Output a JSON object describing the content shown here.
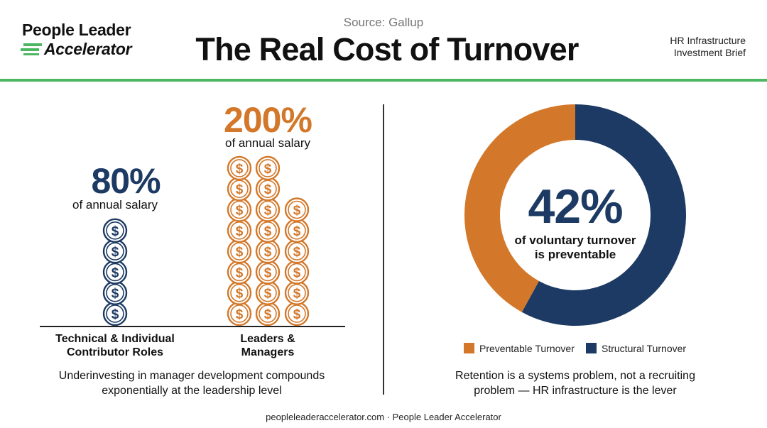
{
  "header": {
    "logo_line1": "People Leader",
    "logo_line2": "Accelerator",
    "source": "Source: Gallup",
    "title": "The Real Cost of Turnover",
    "brief_line1": "HR Infrastructure",
    "brief_line2": "Investment Brief"
  },
  "colors": {
    "navy": "#1c3a63",
    "orange": "#d3782a",
    "green_rule": "#4cb763"
  },
  "chart_data": [
    {
      "type": "bar",
      "categories": [
        "Technical & Individual Contributor Roles",
        "Leaders & Managers"
      ],
      "values": [
        80,
        200
      ],
      "unit": "% of annual salary",
      "data_labels": [
        "80%",
        "200%"
      ],
      "data_sublabels": [
        "of annual salary",
        "of annual salary"
      ],
      "coin_counts": [
        5,
        22
      ],
      "colors": [
        "#1c3a63",
        "#d3782a"
      ],
      "caption": "Underinvesting in manager development compounds exponentially at the leadership level"
    },
    {
      "type": "pie",
      "variant": "donut",
      "slices": [
        {
          "name": "Preventable Turnover",
          "value": 42,
          "color": "#d3782a"
        },
        {
          "name": "Structural Turnover",
          "value": 58,
          "color": "#1c3a63"
        }
      ],
      "center_value": "42%",
      "center_text_line1": "of voluntary turnover",
      "center_text_line2": "is preventable",
      "legend_position": "bottom",
      "caption": "Retention is a systems problem, not a recruiting problem — HR infrastructure is the lever"
    }
  ],
  "labels": {
    "cat1_line1": "Technical & Individual",
    "cat1_line2": "Contributor Roles",
    "cat2_line1": "Leaders &",
    "cat2_line2": "Managers",
    "caption_left_line1": "Underinvesting in manager development compounds",
    "caption_left_line2": "exponentially at the leadership level",
    "caption_right_line1": "Retention is a systems problem, not a recruiting",
    "caption_right_line2": "problem — HR infrastructure is the lever",
    "coin_glyph": "$"
  },
  "footer": "peopleleaderaccelerator.com · People Leader Accelerator"
}
